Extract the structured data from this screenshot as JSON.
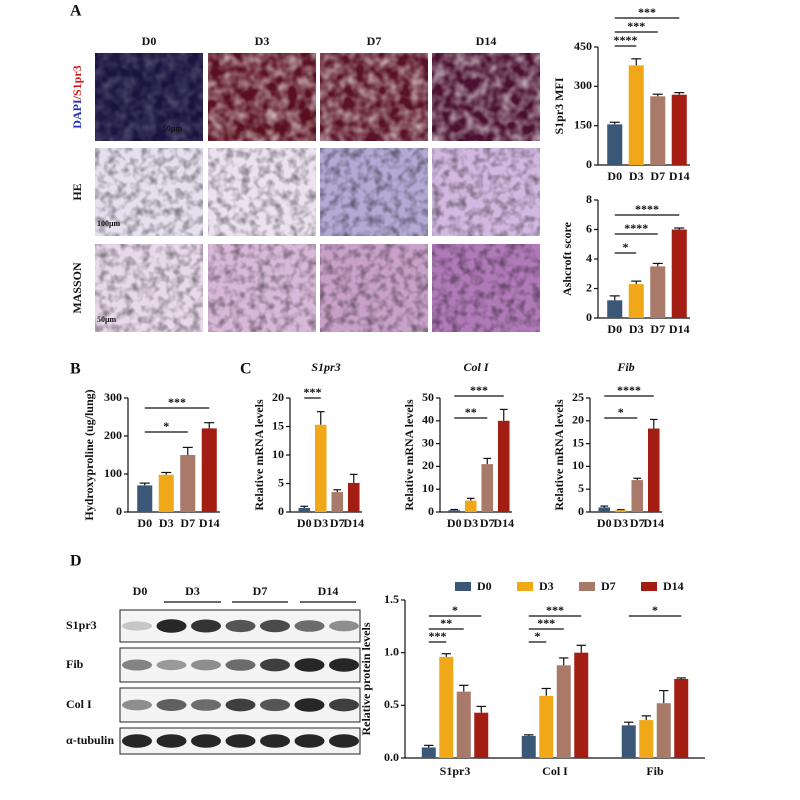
{
  "panel_labels": [
    "A",
    "B",
    "C",
    "D"
  ],
  "image_panel": {
    "columns": [
      "D0",
      "D3",
      "D7",
      "D14"
    ],
    "rows": [
      {
        "label_parts": [
          "DAPI",
          "/S1pr3"
        ],
        "scale": "50μm"
      },
      {
        "label_parts": [
          "HE"
        ],
        "scale": "100μm"
      },
      {
        "label_parts": [
          "MASSON"
        ],
        "scale": "50μm"
      }
    ]
  },
  "blot": {
    "lanes": [
      "D0",
      "D3",
      "D7",
      "D14"
    ],
    "rows": [
      "S1pr3",
      "Fib",
      "Col I",
      "α-tubulin"
    ]
  },
  "chart_data": [
    {
      "type": "bar",
      "ylabel": "S1pr3 MFI",
      "categories": [
        "D0",
        "D3",
        "D7",
        "D14"
      ],
      "values": [
        155,
        380,
        262,
        268
      ],
      "errors": [
        8,
        25,
        8,
        8
      ],
      "colors": [
        "#3b5778",
        "#f0a818",
        "#a97a69",
        "#a41d12"
      ],
      "ylim": [
        0,
        450
      ],
      "yticks": [
        0,
        150,
        300,
        450
      ],
      "significance": [
        {
          "from": 0,
          "to": 3,
          "label": "***"
        },
        {
          "from": 0,
          "to": 2,
          "label": "***"
        },
        {
          "from": 0,
          "to": 1,
          "label": "****"
        }
      ]
    },
    {
      "type": "bar",
      "ylabel": "Ashcroft score",
      "categories": [
        "D0",
        "D3",
        "D7",
        "D14"
      ],
      "values": [
        1.2,
        2.3,
        3.5,
        6.0
      ],
      "errors": [
        0.3,
        0.2,
        0.2,
        0.1
      ],
      "colors": [
        "#3b5778",
        "#f0a818",
        "#a97a69",
        "#a41d12"
      ],
      "ylim": [
        0,
        8
      ],
      "yticks": [
        0,
        2,
        4,
        6,
        8
      ],
      "significance": [
        {
          "from": 0,
          "to": 3,
          "label": "****"
        },
        {
          "from": 0,
          "to": 2,
          "label": "****"
        },
        {
          "from": 0,
          "to": 1,
          "label": "*"
        }
      ]
    },
    {
      "type": "bar",
      "ylabel": "Hydroxyproline (ug/lung)",
      "categories": [
        "D0",
        "D3",
        "D7",
        "D14"
      ],
      "values": [
        70,
        98,
        150,
        220
      ],
      "errors": [
        6,
        6,
        20,
        15
      ],
      "colors": [
        "#3b5778",
        "#f0a818",
        "#a97a69",
        "#a41d12"
      ],
      "ylim": [
        0,
        300
      ],
      "yticks": [
        0,
        100,
        200,
        300
      ],
      "significance": [
        {
          "from": 0,
          "to": 3,
          "label": "***"
        },
        {
          "from": 0,
          "to": 2,
          "label": "*"
        }
      ]
    },
    {
      "type": "bar",
      "title": "S1pr3",
      "ylabel": "Relative mRNA levels",
      "categories": [
        "D0",
        "D3",
        "D7",
        "D14"
      ],
      "values": [
        0.7,
        15.3,
        3.5,
        5.1
      ],
      "errors": [
        0.3,
        2.3,
        0.4,
        1.5
      ],
      "colors": [
        "#3b5778",
        "#f0a818",
        "#a97a69",
        "#a41d12"
      ],
      "ylim": [
        0,
        20
      ],
      "yticks": [
        0,
        5,
        10,
        15,
        20
      ],
      "significance": [
        {
          "from": 0,
          "to": 1,
          "label": "***"
        }
      ]
    },
    {
      "type": "bar",
      "title": "Col I",
      "ylabel": "Relative mRNA levels",
      "categories": [
        "D0",
        "D3",
        "D7",
        "D14"
      ],
      "values": [
        0.8,
        5,
        21,
        40
      ],
      "errors": [
        0.3,
        1,
        2.5,
        5
      ],
      "colors": [
        "#3b5778",
        "#f0a818",
        "#a97a69",
        "#a41d12"
      ],
      "ylim": [
        0,
        50
      ],
      "yticks": [
        0,
        10,
        20,
        30,
        40,
        50
      ],
      "significance": [
        {
          "from": 0,
          "to": 3,
          "label": "***"
        },
        {
          "from": 0,
          "to": 2,
          "label": "**"
        }
      ]
    },
    {
      "type": "bar",
      "title": "Fib",
      "ylabel": "Relative mRNA levels",
      "categories": [
        "D0",
        "D3",
        "D7",
        "D14"
      ],
      "values": [
        1,
        0.4,
        7,
        18.3
      ],
      "errors": [
        0.3,
        0.1,
        0.4,
        2
      ],
      "colors": [
        "#3b5778",
        "#f0a818",
        "#a97a69",
        "#a41d12"
      ],
      "ylim": [
        0,
        25
      ],
      "yticks": [
        0,
        5,
        10,
        15,
        20,
        25
      ],
      "significance": [
        {
          "from": 0,
          "to": 3,
          "label": "****"
        },
        {
          "from": 0,
          "to": 2,
          "label": "*"
        }
      ]
    },
    {
      "type": "grouped_bar",
      "ylabel": "Relative protein levels",
      "categories": [
        "S1pr3",
        "Col I",
        "Fib"
      ],
      "series": [
        {
          "name": "D0",
          "color": "#3b5778",
          "values": [
            0.1,
            0.21,
            0.31
          ],
          "errors": [
            0.02,
            0.01,
            0.03
          ]
        },
        {
          "name": "D3",
          "color": "#f0a818",
          "values": [
            0.96,
            0.59,
            0.36
          ],
          "errors": [
            0.03,
            0.07,
            0.04
          ]
        },
        {
          "name": "D7",
          "color": "#a97a69",
          "values": [
            0.63,
            0.88,
            0.52
          ],
          "errors": [
            0.06,
            0.07,
            0.12
          ]
        },
        {
          "name": "D14",
          "color": "#a41d12",
          "values": [
            0.43,
            1.0,
            0.75
          ],
          "errors": [
            0.06,
            0.07,
            0.01
          ]
        }
      ],
      "ylim": [
        0,
        1.5
      ],
      "yticks": [
        {
          "value": 0,
          "label": "0.0"
        },
        0.5,
        {
          "value": 1,
          "label": "1.0"
        },
        1.5
      ],
      "legend": "top",
      "significance": [
        {
          "group": 0,
          "from": 0,
          "to": 3,
          "label": "*"
        },
        {
          "group": 0,
          "from": 0,
          "to": 2,
          "label": "**"
        },
        {
          "group": 0,
          "from": 0,
          "to": 1,
          "label": "***"
        },
        {
          "group": 1,
          "from": 0,
          "to": 3,
          "label": "***"
        },
        {
          "group": 1,
          "from": 0,
          "to": 2,
          "label": "***"
        },
        {
          "group": 1,
          "from": 0,
          "to": 1,
          "label": "*"
        },
        {
          "group": 2,
          "from": 0,
          "to": 3,
          "label": "*"
        }
      ]
    }
  ]
}
